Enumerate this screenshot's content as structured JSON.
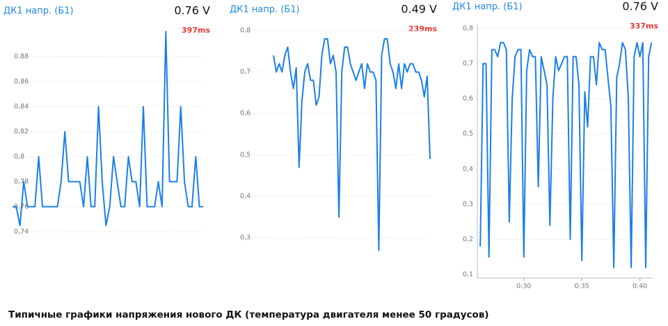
{
  "chart_data": [
    {
      "type": "line",
      "title": "ДК1 напр. (Б1)",
      "reading": "0.76 V",
      "latency": "397ms",
      "color": "#1a7fe8",
      "values": [
        0.76,
        0.76,
        0.745,
        0.78,
        0.76,
        0.76,
        0.76,
        0.8,
        0.76,
        0.76,
        0.76,
        0.76,
        0.76,
        0.78,
        0.82,
        0.78,
        0.78,
        0.78,
        0.78,
        0.76,
        0.8,
        0.76,
        0.76,
        0.84,
        0.78,
        0.745,
        0.76,
        0.8,
        0.78,
        0.76,
        0.76,
        0.8,
        0.78,
        0.78,
        0.76,
        0.84,
        0.76,
        0.76,
        0.76,
        0.78,
        0.76,
        0.9,
        0.78,
        0.78,
        0.78,
        0.84,
        0.78,
        0.76,
        0.76,
        0.8,
        0.76,
        0.76
      ],
      "ylim": [
        0.728,
        0.903
      ],
      "yticks": [
        {
          "value": 0.74,
          "label": "0,74"
        },
        {
          "value": 0.76,
          "label": "0,76"
        },
        {
          "value": 0.78,
          "label": "0,78"
        },
        {
          "value": 0.8,
          "label": "0,8"
        },
        {
          "value": 0.82,
          "label": "0,82"
        },
        {
          "value": 0.84,
          "label": "0,84"
        },
        {
          "value": 0.86,
          "label": "0,86"
        },
        {
          "value": 0.88,
          "label": "0,88"
        }
      ]
    },
    {
      "type": "line",
      "title": "ДК1 напр. (Б1)",
      "reading": "0.49 V",
      "latency": "239ms",
      "color": "#1a7fe8",
      "values": [
        0.74,
        0.7,
        0.72,
        0.7,
        0.74,
        0.76,
        0.7,
        0.66,
        0.71,
        0.47,
        0.63,
        0.7,
        0.72,
        0.68,
        0.68,
        0.62,
        0.64,
        0.74,
        0.78,
        0.78,
        0.72,
        0.74,
        0.7,
        0.35,
        0.7,
        0.76,
        0.76,
        0.72,
        0.7,
        0.68,
        0.7,
        0.72,
        0.66,
        0.72,
        0.7,
        0.7,
        0.68,
        0.27,
        0.74,
        0.78,
        0.78,
        0.72,
        0.7,
        0.66,
        0.72,
        0.66,
        0.72,
        0.7,
        0.72,
        0.72,
        0.7,
        0.7,
        0.68,
        0.64,
        0.69,
        0.49
      ],
      "ylim": [
        0.27,
        0.81
      ],
      "yticks": [
        {
          "value": 0.3,
          "label": "0,3"
        },
        {
          "value": 0.4,
          "label": "0,4"
        },
        {
          "value": 0.5,
          "label": "0,5"
        },
        {
          "value": 0.6,
          "label": "0,6"
        },
        {
          "value": 0.7,
          "label": "0,7"
        },
        {
          "value": 0.8,
          "label": "0,8"
        }
      ]
    },
    {
      "type": "line",
      "title": "ДК1 напр. (Б1)",
      "reading": "0.76 V",
      "latency": "337ms",
      "color": "#1a7fe8",
      "x": [
        26.25,
        26.5,
        26.75,
        27,
        27.25,
        27.5,
        27.75,
        28,
        28.25,
        28.5,
        28.75,
        29,
        29.25,
        29.5,
        29.75,
        30,
        30.25,
        30.5,
        30.75,
        31,
        31.25,
        31.5,
        31.75,
        32,
        32.25,
        32.5,
        32.75,
        33,
        33.25,
        33.5,
        33.75,
        34,
        34.25,
        34.5,
        34.75,
        35,
        35.25,
        35.5,
        35.75,
        36,
        36.25,
        36.5,
        36.75,
        37,
        37.25,
        37.5,
        37.75,
        38,
        38.25,
        38.5,
        38.75,
        39,
        39.25,
        39.5,
        39.75,
        40,
        40.25,
        40.5,
        40.75,
        41
      ],
      "values": [
        0.18,
        0.7,
        0.7,
        0.15,
        0.74,
        0.74,
        0.72,
        0.76,
        0.76,
        0.74,
        0.25,
        0.6,
        0.72,
        0.74,
        0.74,
        0.15,
        0.68,
        0.74,
        0.72,
        0.72,
        0.35,
        0.72,
        0.68,
        0.64,
        0.24,
        0.6,
        0.72,
        0.68,
        0.7,
        0.72,
        0.72,
        0.2,
        0.72,
        0.72,
        0.64,
        0.14,
        0.62,
        0.52,
        0.72,
        0.72,
        0.64,
        0.76,
        0.74,
        0.74,
        0.66,
        0.58,
        0.12,
        0.66,
        0.7,
        0.76,
        0.74,
        0.6,
        0.12,
        0.72,
        0.76,
        0.72,
        0.76,
        0.12,
        0.72,
        0.76
      ],
      "xlim": [
        26.0,
        41.1
      ],
      "xticks": [
        {
          "value": 30,
          "label": "0:30"
        },
        {
          "value": 35,
          "label": "0:35"
        },
        {
          "value": 40,
          "label": "0:40"
        }
      ],
      "ylim": [
        0.09,
        0.81
      ],
      "yticks": [
        {
          "value": 0.1,
          "label": "0,1"
        },
        {
          "value": 0.2,
          "label": "0,2"
        },
        {
          "value": 0.3,
          "label": "0,3"
        },
        {
          "value": 0.4,
          "label": "0,4"
        },
        {
          "value": 0.5,
          "label": "0,5"
        },
        {
          "value": 0.6,
          "label": "0,6"
        },
        {
          "value": 0.7,
          "label": "0,7"
        },
        {
          "value": 0.8,
          "label": "0,8"
        }
      ]
    }
  ],
  "caption": "Типичные графики напряжения нового ДК (температура двигателя менее 50 градусов)"
}
